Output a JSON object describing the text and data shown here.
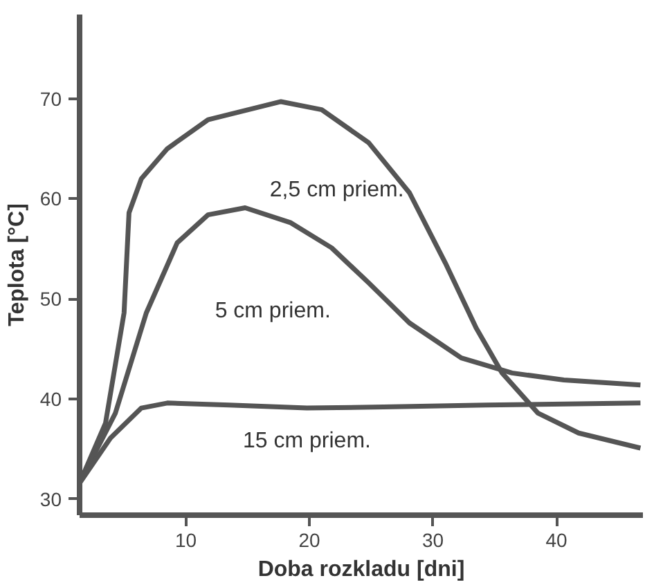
{
  "chart_data": {
    "type": "line",
    "xlabel": "Doba rozkladu [dni]",
    "ylabel": "Teplota [°C]",
    "xlim": [
      1.4,
      47
    ],
    "ylim": [
      28.4,
      78.4
    ],
    "xticks": [
      10,
      20,
      30,
      40
    ],
    "yticks": [
      30,
      40,
      50,
      60,
      70
    ],
    "grid": false,
    "marker": "none",
    "line_style": "solid",
    "series": [
      {
        "name": "2,5 cm priem.",
        "color": "#555555",
        "x": [
          1.4,
          3.5,
          5,
          5.4,
          6.4,
          8.5,
          11.8,
          17.7,
          21,
          24.8,
          28.1,
          31,
          33.5,
          35.6,
          38.5,
          41.8,
          46.8
        ],
        "values": [
          31.6,
          37.6,
          48.6,
          58.6,
          62,
          65,
          67.9,
          69.7,
          68.9,
          65.6,
          60.6,
          53.6,
          47.1,
          42.6,
          38.6,
          36.6,
          35.1
        ]
      },
      {
        "name": "5 cm priem.",
        "color": "#555555",
        "x": [
          1.4,
          4.3,
          6.8,
          9.3,
          11.8,
          14.8,
          18.5,
          21.8,
          24.8,
          28.1,
          32.3,
          36.4,
          40.6,
          46.8
        ],
        "values": [
          31.6,
          38.6,
          48.6,
          55.6,
          58.4,
          59.1,
          57.6,
          55.1,
          51.6,
          47.6,
          44.1,
          42.6,
          41.9,
          41.4
        ]
      },
      {
        "name": "15 cm priem.",
        "color": "#555555",
        "x": [
          1.4,
          3.9,
          6.4,
          8.5,
          13.5,
          19.8,
          26,
          34.3,
          46.8
        ],
        "values": [
          31.6,
          36.1,
          39.1,
          39.6,
          39.4,
          39.1,
          39.2,
          39.4,
          39.6
        ]
      }
    ]
  }
}
